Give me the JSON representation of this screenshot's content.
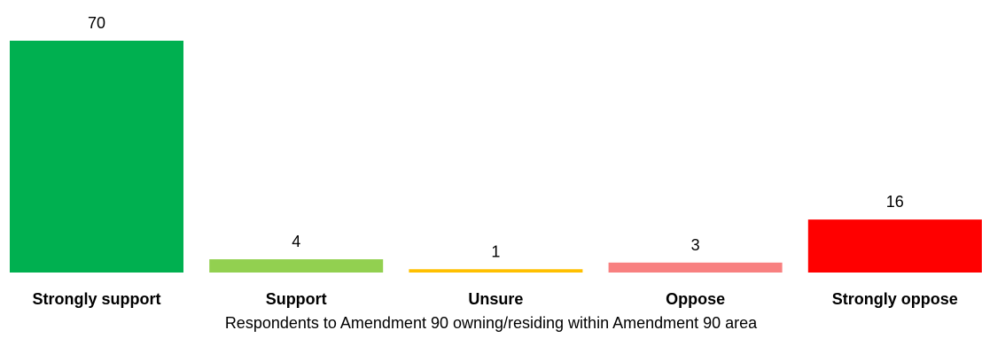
{
  "chart_data": {
    "type": "bar",
    "categories": [
      "Strongly support",
      "Support",
      "Unsure",
      "Oppose",
      "Strongly oppose"
    ],
    "values": [
      70,
      4,
      1,
      3,
      16
    ],
    "colors": [
      "#00B050",
      "#92D050",
      "#FFC000",
      "#F88080",
      "#FF0000"
    ],
    "xlabel": "Respondents to Amendment 90 owning/residing within Amendment 90 area",
    "ylim": [
      0,
      70
    ],
    "grid": false,
    "legend": "none"
  }
}
